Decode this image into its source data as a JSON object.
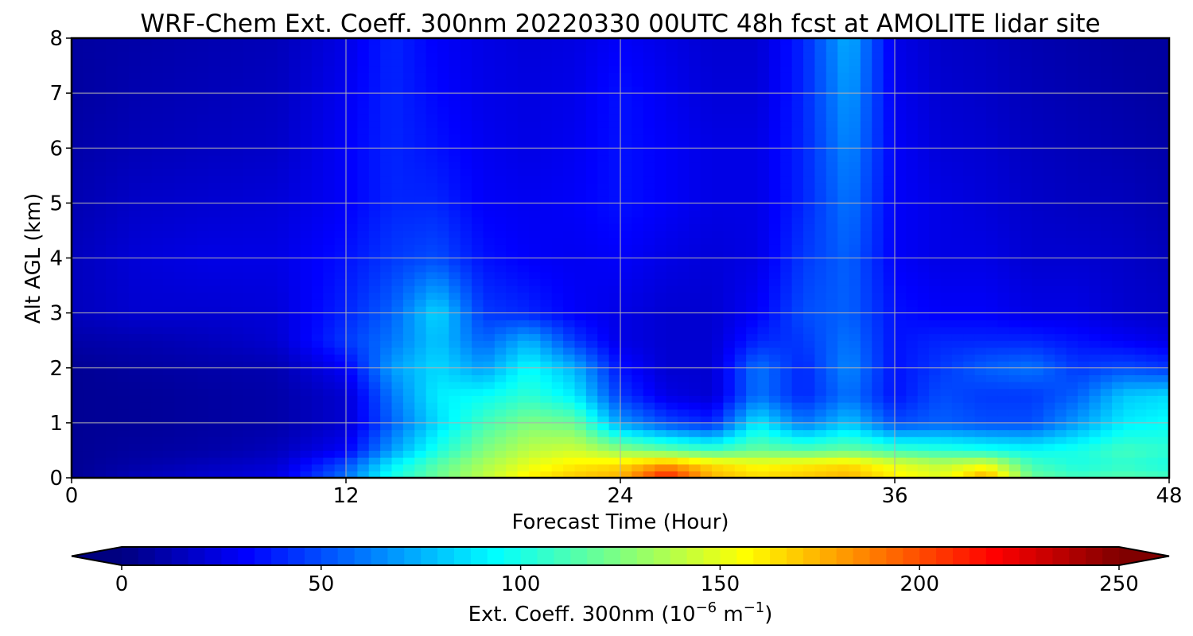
{
  "chart_data": {
    "type": "heatmap",
    "title": "WRF-Chem Ext. Coeff. 300nm  20220330 00UTC 48h fcst at AMOLITE lidar site",
    "xlabel": "Forecast Time (Hour)",
    "ylabel": "Alt AGL (km)",
    "xlim": [
      0,
      48
    ],
    "ylim": [
      0,
      8
    ],
    "x_ticks": [
      0,
      12,
      24,
      36,
      48
    ],
    "y_ticks": [
      0,
      1,
      2,
      3,
      4,
      5,
      6,
      7,
      8
    ],
    "grid": true,
    "colormap": "jet",
    "colorbar": {
      "label_main": "Ext. Coeff. 300nm  (10",
      "label_exp1": "−6",
      "label_mid": " m",
      "label_exp2": "−1",
      "label_end": ")",
      "range": [
        0,
        250
      ],
      "ticks": [
        0,
        50,
        100,
        150,
        200,
        250
      ],
      "extend": "both",
      "orientation": "horizontal"
    },
    "altitudes_km": [
      0,
      0.25,
      0.5,
      1,
      1.5,
      2,
      2.5,
      3,
      4,
      5,
      6,
      7,
      8
    ],
    "hours": [
      0,
      3,
      6,
      9,
      12,
      14,
      16,
      18,
      20,
      22,
      24,
      26,
      28,
      30,
      32,
      34,
      36,
      38,
      40,
      42,
      44,
      46,
      48
    ],
    "values": [
      [
        5,
        15,
        20,
        25,
        60,
        100,
        120,
        140,
        160,
        170,
        175,
        215,
        175,
        165,
        170,
        175,
        160,
        150,
        180,
        120,
        110,
        115,
        110
      ],
      [
        5,
        10,
        15,
        20,
        50,
        90,
        115,
        135,
        150,
        160,
        165,
        180,
        165,
        155,
        160,
        165,
        150,
        140,
        150,
        110,
        100,
        105,
        100
      ],
      [
        5,
        8,
        10,
        15,
        30,
        70,
        100,
        125,
        140,
        145,
        130,
        120,
        110,
        120,
        115,
        120,
        110,
        105,
        100,
        95,
        100,
        110,
        105
      ],
      [
        5,
        6,
        8,
        10,
        20,
        55,
        85,
        110,
        125,
        120,
        70,
        50,
        40,
        90,
        60,
        80,
        50,
        55,
        50,
        50,
        70,
        90,
        95
      ],
      [
        5,
        6,
        8,
        10,
        20,
        60,
        90,
        95,
        105,
        90,
        45,
        25,
        20,
        60,
        40,
        60,
        35,
        50,
        45,
        45,
        55,
        80,
        85
      ],
      [
        5,
        8,
        10,
        12,
        30,
        70,
        85,
        70,
        95,
        75,
        35,
        20,
        20,
        60,
        40,
        65,
        35,
        45,
        55,
        60,
        45,
        50,
        45
      ],
      [
        10,
        12,
        15,
        20,
        45,
        60,
        80,
        55,
        75,
        45,
        25,
        20,
        20,
        40,
        45,
        60,
        35,
        40,
        40,
        40,
        35,
        30,
        25
      ],
      [
        15,
        20,
        20,
        22,
        40,
        55,
        85,
        45,
        40,
        30,
        25,
        20,
        20,
        30,
        50,
        55,
        35,
        30,
        30,
        25,
        25,
        20,
        18
      ],
      [
        15,
        22,
        25,
        25,
        35,
        45,
        50,
        35,
        30,
        28,
        30,
        25,
        22,
        25,
        45,
        55,
        30,
        25,
        25,
        20,
        20,
        18,
        15
      ],
      [
        12,
        18,
        20,
        22,
        30,
        40,
        40,
        30,
        28,
        30,
        35,
        30,
        25,
        25,
        40,
        60,
        30,
        25,
        22,
        18,
        16,
        15,
        12
      ],
      [
        10,
        14,
        16,
        18,
        30,
        40,
        35,
        28,
        25,
        28,
        35,
        30,
        25,
        25,
        40,
        65,
        30,
        22,
        20,
        16,
        14,
        12,
        10
      ],
      [
        8,
        12,
        14,
        16,
        28,
        40,
        32,
        26,
        24,
        26,
        35,
        28,
        22,
        22,
        40,
        70,
        28,
        20,
        18,
        14,
        12,
        10,
        8
      ],
      [
        8,
        10,
        12,
        14,
        25,
        40,
        30,
        25,
        22,
        24,
        30,
        25,
        20,
        20,
        40,
        75,
        26,
        18,
        16,
        12,
        10,
        8,
        8
      ]
    ]
  }
}
